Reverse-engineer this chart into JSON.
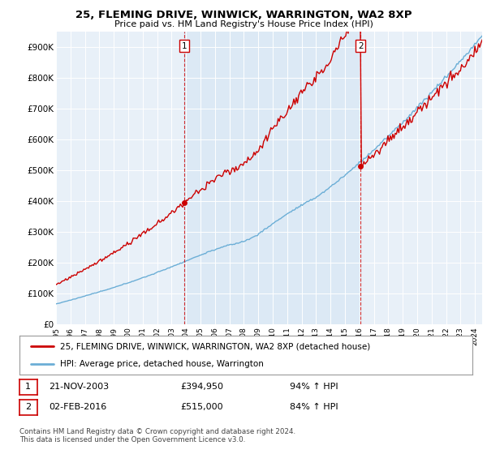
{
  "title": "25, FLEMING DRIVE, WINWICK, WARRINGTON, WA2 8XP",
  "subtitle": "Price paid vs. HM Land Registry's House Price Index (HPI)",
  "legend_line1": "25, FLEMING DRIVE, WINWICK, WARRINGTON, WA2 8XP (detached house)",
  "legend_line2": "HPI: Average price, detached house, Warrington",
  "annotation1_date": "21-NOV-2003",
  "annotation1_price": "£394,950",
  "annotation1_hpi": "94% ↑ HPI",
  "annotation2_date": "02-FEB-2016",
  "annotation2_price": "£515,000",
  "annotation2_hpi": "84% ↑ HPI",
  "footer": "Contains HM Land Registry data © Crown copyright and database right 2024.\nThis data is licensed under the Open Government Licence v3.0.",
  "hpi_color": "#6baed6",
  "price_color": "#cc0000",
  "highlight_color": "#dce9f5",
  "ylim": [
    0,
    950000
  ],
  "yticks": [
    0,
    100000,
    200000,
    300000,
    400000,
    500000,
    600000,
    700000,
    800000,
    900000
  ],
  "ytick_labels": [
    "£0",
    "£100K",
    "£200K",
    "£300K",
    "£400K",
    "£500K",
    "£600K",
    "£700K",
    "£800K",
    "£900K"
  ],
  "x_start_year": 1995,
  "x_end_year": 2024,
  "sale1_year": 2003.89,
  "sale1_price": 394950,
  "sale2_year": 2016.09,
  "sale2_price": 515000,
  "background_color": "#e8f0f8",
  "grid_color": "#ffffff"
}
